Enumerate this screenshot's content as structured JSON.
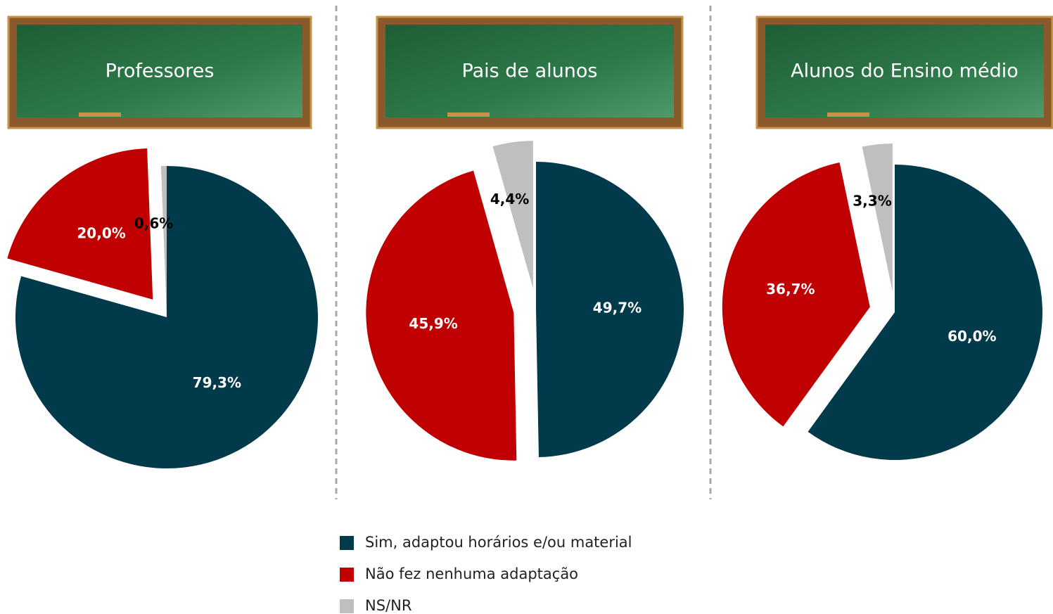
{
  "chart_data": [
    {
      "type": "pie",
      "title": "Professores",
      "categories": [
        "Sim, adaptou horários e/ou material",
        "Não fez nenhuma adaptação",
        "NS/NR"
      ],
      "colors": [
        "#003a4b",
        "#c00000",
        "#bfbfbf"
      ],
      "values": [
        79.3,
        20.0,
        0.6
      ],
      "value_labels": [
        "79,3%",
        "20,0%",
        "0,6%"
      ]
    },
    {
      "type": "pie",
      "title": "Pais de alunos",
      "categories": [
        "Sim, adaptou horários e/ou material",
        "Não fez nenhuma adaptação",
        "NS/NR"
      ],
      "colors": [
        "#003a4b",
        "#c00000",
        "#bfbfbf"
      ],
      "values": [
        49.7,
        45.9,
        4.4
      ],
      "value_labels": [
        "49,7%",
        "45,9%",
        "4,4%"
      ]
    },
    {
      "type": "pie",
      "title": "Alunos do Ensino médio",
      "categories": [
        "Sim, adaptou horários e/ou material",
        "Não fez nenhuma adaptação",
        "NS/NR"
      ],
      "colors": [
        "#003a4b",
        "#c00000",
        "#bfbfbf"
      ],
      "values": [
        60.0,
        36.7,
        3.3
      ],
      "value_labels": [
        "60,0%",
        "36,7%",
        "3,3%"
      ]
    }
  ]
}
